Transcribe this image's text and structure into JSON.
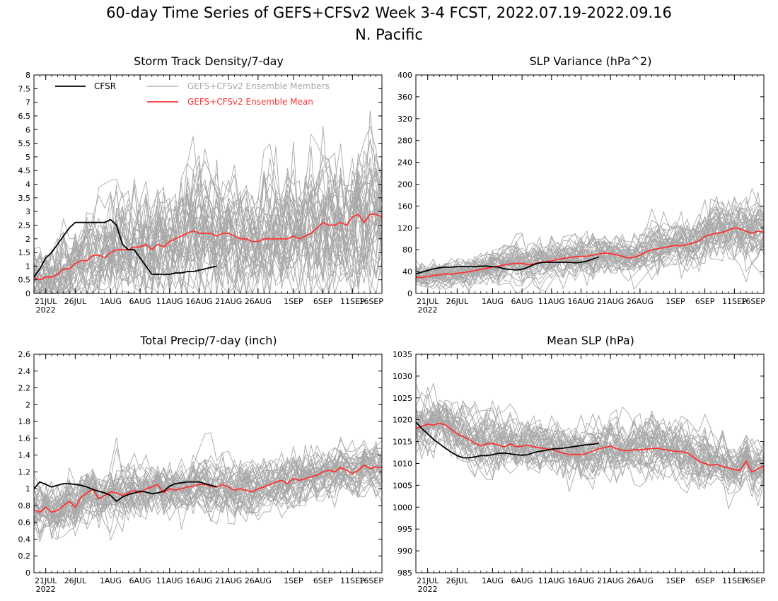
{
  "figure": {
    "title": "60-day Time Series of GEFS+CFSv2 Week 3-4 FCST, 2022.07.19-2022.09.16",
    "subtitle": "N. Pacific"
  },
  "colors": {
    "cfsr": "#000000",
    "members": "#a8a8a8",
    "mean": "#ff3333"
  },
  "legend": {
    "cfsr": "CFSR",
    "members": "GEFS+CFSv2 Ensemble Members",
    "mean": "GEFS+CFSv2 Ensemble Mean"
  },
  "x_axis": {
    "year_label": "2022",
    "ticks": [
      {
        "day": 2,
        "label": "21JUL"
      },
      {
        "day": 7,
        "label": "26JUL"
      },
      {
        "day": 13,
        "label": "1AUG"
      },
      {
        "day": 18,
        "label": "6AUG"
      },
      {
        "day": 23,
        "label": "11AUG"
      },
      {
        "day": 28,
        "label": "16AUG"
      },
      {
        "day": 33,
        "label": "21AUG"
      },
      {
        "day": 38,
        "label": "26AUG"
      },
      {
        "day": 44,
        "label": "1SEP"
      },
      {
        "day": 49,
        "label": "6SEP"
      },
      {
        "day": 54,
        "label": "11SEP"
      },
      {
        "day": 59,
        "label": "16SEP"
      }
    ]
  },
  "chart_data": [
    {
      "type": "line",
      "title": "Storm Track Density/7-day",
      "xlim": [
        0,
        59
      ],
      "ylim": [
        0,
        8
      ],
      "yticks": [
        "0",
        "0.5",
        "1",
        "1.5",
        "2",
        "2.5",
        "3",
        "3.5",
        "4",
        "4.5",
        "5",
        "5.5",
        "6",
        "6.5",
        "7",
        "7.5",
        "8"
      ],
      "series": [
        {
          "name": "CFSR",
          "x": [
            0,
            1,
            2,
            3,
            4,
            5,
            6,
            7,
            8,
            9,
            10,
            11,
            12,
            13,
            14,
            15,
            16,
            17,
            18,
            19,
            20,
            21,
            22,
            23,
            24,
            25,
            26,
            27,
            28,
            29,
            30,
            31
          ],
          "values": [
            0.6,
            0.9,
            1.3,
            1.5,
            1.8,
            2.1,
            2.4,
            2.6,
            2.6,
            2.6,
            2.6,
            2.6,
            2.6,
            2.7,
            2.5,
            1.8,
            1.6,
            1.6,
            1.3,
            1.0,
            0.7,
            0.7,
            0.7,
            0.7,
            0.75,
            0.75,
            0.8,
            0.8,
            0.85,
            0.9,
            0.95,
            1.0
          ]
        },
        {
          "name": "GEFS+CFSv2 Ensemble Mean",
          "x": [
            0,
            1,
            2,
            3,
            4,
            5,
            6,
            7,
            8,
            9,
            10,
            11,
            12,
            13,
            14,
            15,
            16,
            17,
            18,
            19,
            20,
            21,
            22,
            23,
            24,
            25,
            26,
            27,
            28,
            29,
            30,
            31,
            32,
            33,
            34,
            35,
            36,
            37,
            38,
            39,
            40,
            41,
            42,
            43,
            44,
            45,
            46,
            47,
            48,
            49,
            50,
            51,
            52,
            53,
            54,
            55,
            56,
            57,
            58,
            59
          ],
          "values": [
            0.6,
            0.5,
            0.6,
            0.6,
            0.7,
            0.9,
            0.9,
            1.1,
            1.2,
            1.2,
            1.4,
            1.4,
            1.3,
            1.5,
            1.6,
            1.6,
            1.6,
            1.7,
            1.7,
            1.8,
            1.6,
            1.8,
            1.7,
            1.9,
            2.0,
            2.1,
            2.2,
            2.3,
            2.2,
            2.2,
            2.2,
            2.1,
            2.2,
            2.2,
            2.1,
            2.0,
            2.0,
            1.9,
            1.9,
            2.0,
            2.0,
            2.0,
            2.0,
            2.0,
            2.1,
            2.0,
            2.1,
            2.2,
            2.4,
            2.6,
            2.5,
            2.5,
            2.6,
            2.5,
            2.8,
            2.9,
            2.6,
            2.9,
            2.9,
            2.8
          ]
        }
      ]
    },
    {
      "type": "line",
      "title": "SLP Variance (hPa^2)",
      "xlim": [
        0,
        59
      ],
      "ylim": [
        0,
        400
      ],
      "yticks": [
        "0",
        "40",
        "80",
        "120",
        "160",
        "200",
        "240",
        "280",
        "320",
        "360",
        "400"
      ],
      "series": [
        {
          "name": "CFSR",
          "x": [
            0,
            1,
            2,
            3,
            4,
            5,
            6,
            7,
            8,
            9,
            10,
            11,
            12,
            13,
            14,
            15,
            16,
            17,
            18,
            19,
            20,
            21,
            22,
            23,
            24,
            25,
            26,
            27,
            28,
            29,
            30,
            31
          ],
          "values": [
            36,
            39,
            42,
            45,
            47,
            48,
            48,
            49,
            49,
            49,
            49,
            50,
            50,
            49,
            48,
            45,
            44,
            43,
            44,
            48,
            53,
            56,
            57,
            57,
            57,
            57,
            57,
            56,
            57,
            59,
            63,
            67
          ]
        },
        {
          "name": "GEFS+CFSv2 Ensemble Mean",
          "x": [
            0,
            1,
            2,
            3,
            4,
            5,
            6,
            7,
            8,
            9,
            10,
            11,
            12,
            13,
            14,
            15,
            16,
            17,
            18,
            19,
            20,
            21,
            22,
            23,
            24,
            25,
            26,
            27,
            28,
            29,
            30,
            31,
            32,
            33,
            34,
            35,
            36,
            37,
            38,
            39,
            40,
            41,
            42,
            43,
            44,
            45,
            46,
            47,
            48,
            49,
            50,
            51,
            52,
            53,
            54,
            55,
            56,
            57,
            58,
            59
          ],
          "values": [
            30,
            29,
            31,
            33,
            34,
            36,
            35,
            37,
            38,
            40,
            42,
            44,
            46,
            48,
            50,
            52,
            54,
            55,
            55,
            53,
            54,
            57,
            58,
            60,
            62,
            64,
            66,
            67,
            68,
            68,
            70,
            72,
            74,
            73,
            71,
            68,
            65,
            66,
            70,
            76,
            80,
            82,
            84,
            86,
            88,
            87,
            90,
            92,
            96,
            104,
            108,
            110,
            112,
            116,
            120,
            118,
            114,
            110,
            114,
            112
          ]
        }
      ]
    },
    {
      "type": "line",
      "title": "Total Precip/7-day (inch)",
      "xlim": [
        0,
        59
      ],
      "ylim": [
        0,
        2.6
      ],
      "yticks": [
        "0",
        "0.2",
        "0.4",
        "0.6",
        "0.8",
        "1",
        "1.2",
        "1.4",
        "1.6",
        "1.8",
        "2",
        "2.2",
        "2.4",
        "2.6"
      ],
      "series": [
        {
          "name": "CFSR",
          "x": [
            0,
            1,
            2,
            3,
            4,
            5,
            6,
            7,
            8,
            9,
            10,
            11,
            12,
            13,
            14,
            15,
            16,
            17,
            18,
            19,
            20,
            21,
            22,
            23,
            24,
            25,
            26,
            27,
            28,
            29,
            30,
            31
          ],
          "values": [
            1.0,
            1.08,
            1.05,
            1.02,
            1.04,
            1.06,
            1.06,
            1.05,
            1.04,
            1.02,
            0.99,
            0.97,
            0.95,
            0.92,
            0.85,
            0.9,
            0.93,
            0.95,
            0.97,
            0.96,
            0.94,
            0.95,
            0.97,
            1.03,
            1.06,
            1.07,
            1.08,
            1.08,
            1.08,
            1.06,
            1.04,
            1.02
          ]
        },
        {
          "name": "GEFS+CFSv2 Ensemble Mean",
          "x": [
            0,
            1,
            2,
            3,
            4,
            5,
            6,
            7,
            8,
            9,
            10,
            11,
            12,
            13,
            14,
            15,
            16,
            17,
            18,
            19,
            20,
            21,
            22,
            23,
            24,
            25,
            26,
            27,
            28,
            29,
            30,
            31,
            32,
            33,
            34,
            35,
            36,
            37,
            38,
            39,
            40,
            41,
            42,
            43,
            44,
            45,
            46,
            47,
            48,
            49,
            50,
            51,
            52,
            53,
            54,
            55,
            56,
            57,
            58,
            59
          ],
          "values": [
            0.75,
            0.72,
            0.78,
            0.72,
            0.74,
            0.8,
            0.85,
            0.78,
            0.9,
            0.95,
            1.0,
            0.88,
            0.92,
            0.96,
            0.95,
            0.92,
            0.95,
            0.98,
            0.95,
            1.0,
            1.02,
            1.05,
            0.95,
            1.0,
            0.98,
            1.0,
            1.02,
            1.03,
            1.05,
            1.05,
            1.03,
            1.02,
            1.05,
            1.02,
            0.98,
            1.0,
            0.98,
            0.96,
            1.0,
            1.02,
            1.05,
            1.08,
            1.1,
            1.06,
            1.12,
            1.1,
            1.12,
            1.14,
            1.16,
            1.2,
            1.22,
            1.2,
            1.25,
            1.22,
            1.18,
            1.22,
            1.28,
            1.24,
            1.26,
            1.25
          ]
        }
      ]
    },
    {
      "type": "line",
      "title": "Mean SLP (hPa)",
      "xlim": [
        0,
        59
      ],
      "ylim": [
        985,
        1035
      ],
      "yticks": [
        "985",
        "990",
        "995",
        "1000",
        "1005",
        "1010",
        "1015",
        "1020",
        "1025",
        "1030",
        "1035"
      ],
      "series": [
        {
          "name": "CFSR",
          "x": [
            0,
            1,
            2,
            3,
            4,
            5,
            6,
            7,
            8,
            9,
            10,
            11,
            12,
            13,
            14,
            15,
            16,
            17,
            18,
            19,
            20,
            21,
            22,
            23,
            24,
            25,
            26,
            27,
            28,
            29,
            30,
            31
          ],
          "values": [
            1019.5,
            1018,
            1016.8,
            1015.5,
            1014.5,
            1013.5,
            1012.6,
            1011.8,
            1011.3,
            1011.3,
            1011.5,
            1011.8,
            1011.8,
            1012,
            1012.3,
            1012.4,
            1012.2,
            1012,
            1011.9,
            1012,
            1012.5,
            1012.8,
            1013,
            1013.3,
            1013.4,
            1013.5,
            1013.7,
            1013.9,
            1014.1,
            1014.3,
            1014.4,
            1014.6
          ]
        },
        {
          "name": "GEFS+CFSv2 Ensemble Mean",
          "x": [
            0,
            1,
            2,
            3,
            4,
            5,
            6,
            7,
            8,
            9,
            10,
            11,
            12,
            13,
            14,
            15,
            16,
            17,
            18,
            19,
            20,
            21,
            22,
            23,
            24,
            25,
            26,
            27,
            28,
            29,
            30,
            31,
            32,
            33,
            34,
            35,
            36,
            37,
            38,
            39,
            40,
            41,
            42,
            43,
            44,
            45,
            46,
            47,
            48,
            49,
            50,
            51,
            52,
            53,
            54,
            55,
            56,
            57,
            58,
            59
          ],
          "values": [
            1018,
            1018.5,
            1019,
            1018.8,
            1019.2,
            1018.8,
            1017.8,
            1016.8,
            1016.2,
            1015.5,
            1014.6,
            1014,
            1014.5,
            1014.6,
            1014.2,
            1013.8,
            1014.5,
            1013.8,
            1014,
            1014.2,
            1013.8,
            1013.6,
            1013.4,
            1013.2,
            1012.8,
            1012.4,
            1012,
            1012.1,
            1012,
            1012.3,
            1012.8,
            1013.4,
            1013.6,
            1014,
            1013.4,
            1013,
            1012.9,
            1013.2,
            1013.1,
            1013.3,
            1013.4,
            1013.5,
            1013.2,
            1013,
            1012.8,
            1012.7,
            1012.5,
            1011.5,
            1010.5,
            1010,
            1009.6,
            1009.8,
            1009.3,
            1009,
            1008.6,
            1008.4,
            1010.5,
            1008,
            1008.8,
            1009.5
          ]
        }
      ]
    }
  ]
}
